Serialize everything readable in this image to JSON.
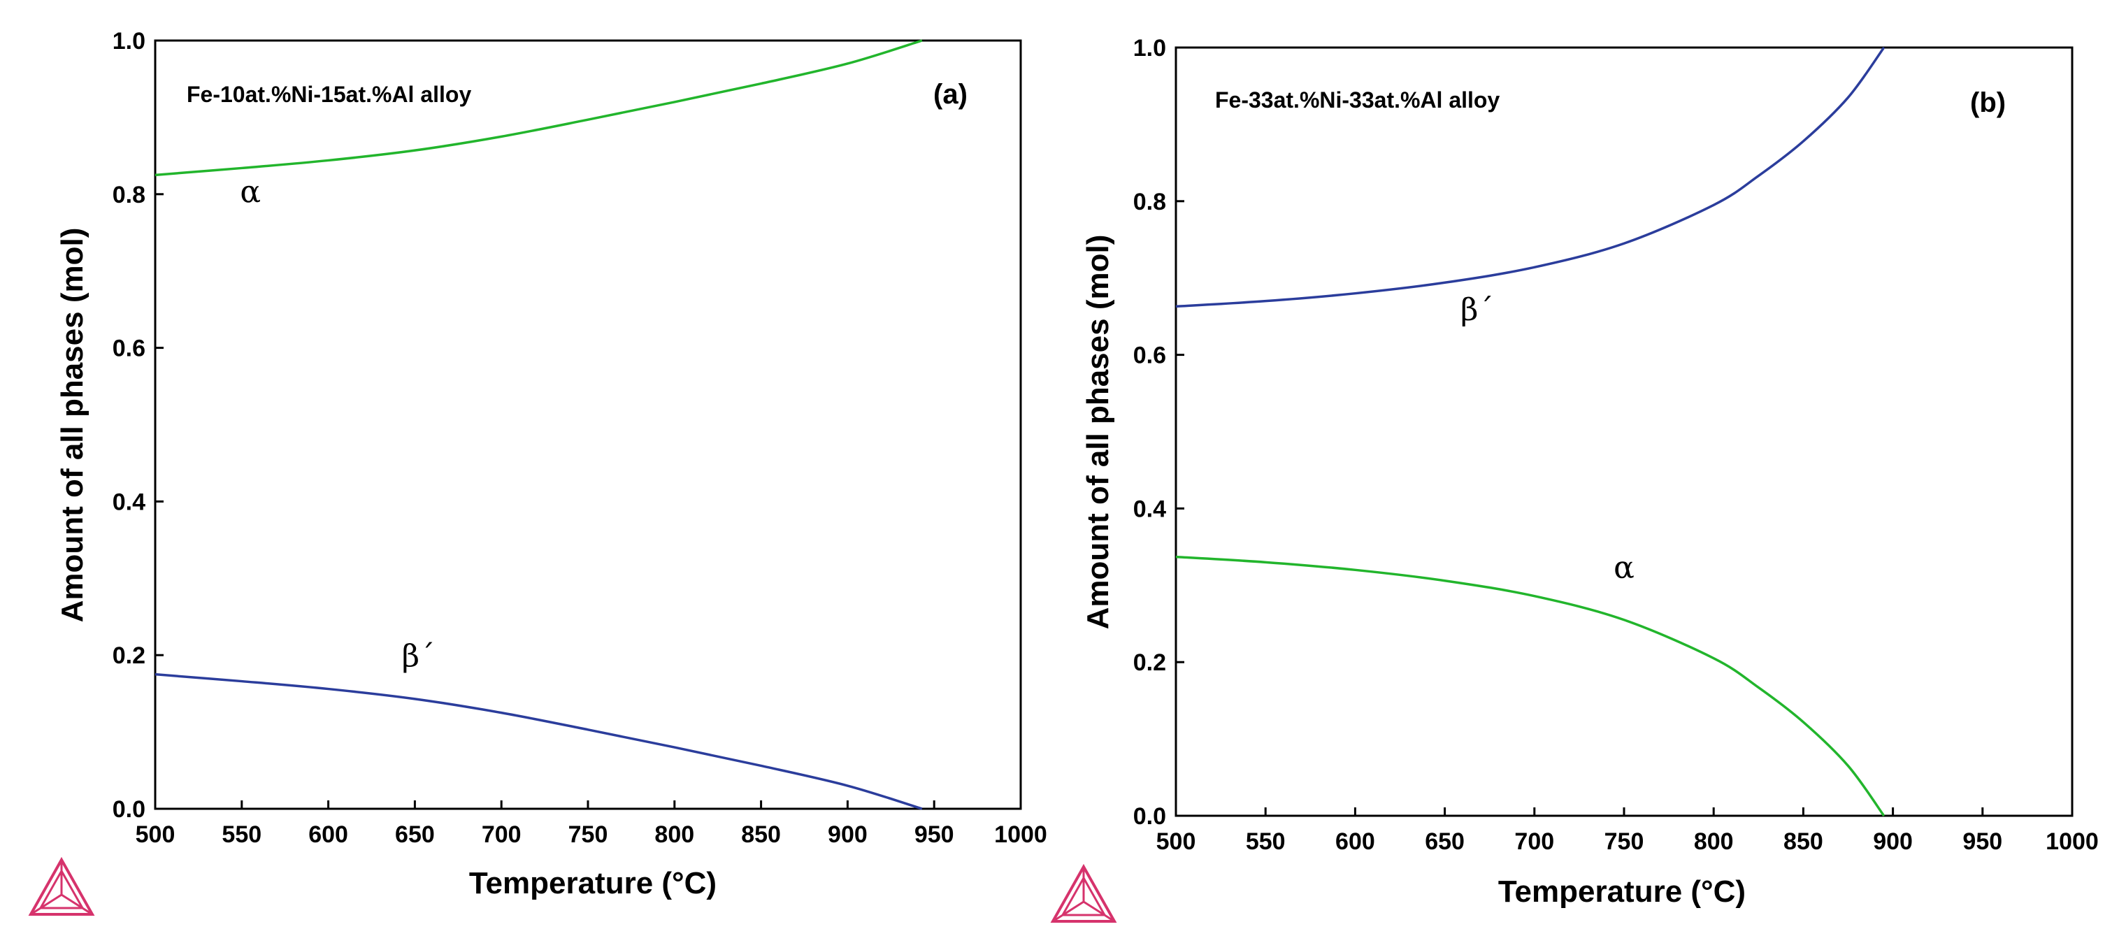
{
  "colors": {
    "alpha": "#22b52c",
    "beta_prime": "#2b3d9c",
    "logo": "#d6336c"
  },
  "chart_data": [
    {
      "type": "line",
      "panel_tag": "(a)",
      "annotation": "Fe-10at.%Ni-15at.%Al alloy",
      "xlabel": "Temperature (°C)",
      "ylabel": "Amount of all phases (mol)",
      "xlim": [
        500,
        1000
      ],
      "ylim": [
        0,
        1
      ],
      "xticks": [
        "500",
        "550",
        "600",
        "650",
        "700",
        "750",
        "800",
        "850",
        "900",
        "950",
        "1000"
      ],
      "yticks": [
        "0.0",
        "0.2",
        "0.4",
        "0.6",
        "0.8",
        "1.0"
      ],
      "series": [
        {
          "name": "α",
          "label": "α",
          "color_key": "alpha",
          "x": [
            500,
            550,
            600,
            650,
            700,
            750,
            800,
            850,
            900,
            943
          ],
          "y": [
            0.825,
            0.834,
            0.844,
            0.857,
            0.875,
            0.897,
            0.92,
            0.944,
            0.97,
            1.0
          ],
          "label_at": [
            555,
            0.79
          ]
        },
        {
          "name": "β´",
          "label": "β´",
          "color_key": "beta_prime",
          "x": [
            500,
            550,
            600,
            650,
            700,
            750,
            800,
            850,
            900,
            943
          ],
          "y": [
            0.175,
            0.166,
            0.156,
            0.143,
            0.125,
            0.103,
            0.08,
            0.056,
            0.03,
            0.0
          ],
          "label_at": [
            652,
            0.185
          ]
        }
      ]
    },
    {
      "type": "line",
      "panel_tag": "(b)",
      "annotation": "Fe-33at.%Ni-33at.%Al alloy",
      "xlabel": "Temperature (°C)",
      "ylabel": "Amount of all phases (mol)",
      "xlim": [
        500,
        1000
      ],
      "ylim": [
        0,
        1
      ],
      "xticks": [
        "500",
        "550",
        "600",
        "650",
        "700",
        "750",
        "800",
        "850",
        "900",
        "950",
        "1000"
      ],
      "yticks": [
        "0.0",
        "0.2",
        "0.4",
        "0.6",
        "0.8",
        "1.0"
      ],
      "series": [
        {
          "name": "β´",
          "label": "β´",
          "color_key": "beta_prime",
          "x": [
            500,
            550,
            600,
            650,
            700,
            750,
            800,
            825,
            850,
            875,
            895
          ],
          "y": [
            0.663,
            0.67,
            0.68,
            0.694,
            0.714,
            0.745,
            0.795,
            0.833,
            0.878,
            0.935,
            1.0
          ],
          "label_at": [
            668,
            0.645
          ]
        },
        {
          "name": "α",
          "label": "α",
          "color_key": "alpha",
          "x": [
            500,
            550,
            600,
            650,
            700,
            750,
            800,
            825,
            850,
            875,
            895
          ],
          "y": [
            0.337,
            0.33,
            0.32,
            0.306,
            0.286,
            0.255,
            0.205,
            0.167,
            0.122,
            0.065,
            0.0
          ],
          "label_at": [
            750,
            0.31
          ]
        }
      ]
    }
  ]
}
